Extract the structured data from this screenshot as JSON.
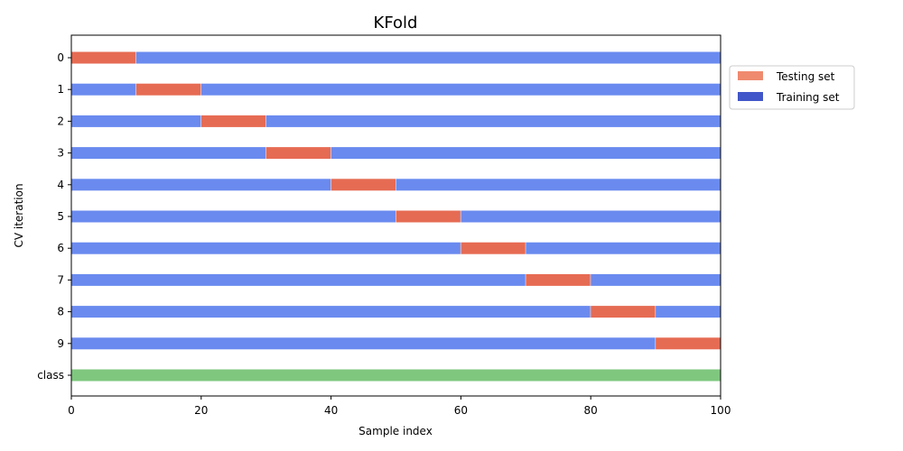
{
  "chart_data": {
    "type": "bar",
    "title": "KFold",
    "xlabel": "Sample index",
    "ylabel": "CV iteration",
    "xlim": [
      0,
      100
    ],
    "xticks": [
      0,
      20,
      40,
      60,
      80,
      100
    ],
    "n_samples": 100,
    "rows": [
      {
        "label": "0",
        "test_range": [
          0,
          10
        ]
      },
      {
        "label": "1",
        "test_range": [
          10,
          20
        ]
      },
      {
        "label": "2",
        "test_range": [
          20,
          30
        ]
      },
      {
        "label": "3",
        "test_range": [
          30,
          40
        ]
      },
      {
        "label": "4",
        "test_range": [
          40,
          50
        ]
      },
      {
        "label": "5",
        "test_range": [
          50,
          60
        ]
      },
      {
        "label": "6",
        "test_range": [
          60,
          70
        ]
      },
      {
        "label": "7",
        "test_range": [
          70,
          80
        ]
      },
      {
        "label": "8",
        "test_range": [
          80,
          90
        ]
      },
      {
        "label": "9",
        "test_range": [
          90,
          100
        ]
      }
    ],
    "class_row": {
      "label": "class",
      "range": [
        0,
        100
      ]
    },
    "legend": [
      {
        "name": "Testing set",
        "color": "#ef8a6f"
      },
      {
        "name": "Training set",
        "color": "#4156c8"
      }
    ],
    "legend_position": "right",
    "colors": {
      "test": "#e66b53",
      "train": "#6a8aef",
      "class": "#7fc77f"
    },
    "grid": false
  }
}
